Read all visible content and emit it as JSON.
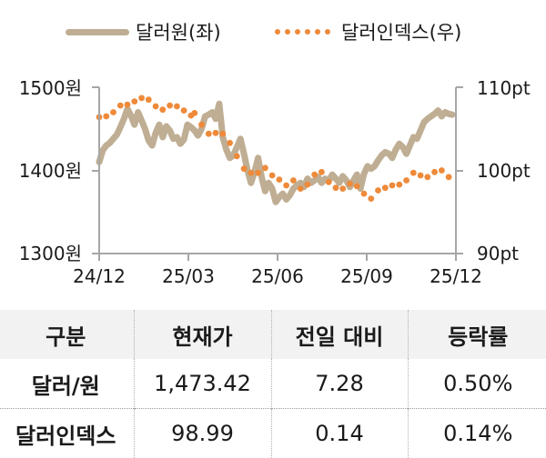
{
  "legend": {
    "usdkrw_label": "달러원(좌)",
    "dxy_label": "달러인덱스(우)"
  },
  "colors": {
    "usdkrw": "#bfae93",
    "dxy": "#ee8a3a",
    "axis": "#a6a6a6",
    "header_bg": "#f2f2f2"
  },
  "chart_data": {
    "type": "line",
    "title": "",
    "xlabel": "",
    "ylabel_left": "원",
    "ylabel_right": "pt",
    "x_tick_labels": [
      "24/12",
      "25/03",
      "25/06",
      "25/09",
      "25/12"
    ],
    "y_left_ticks": [
      "1300원",
      "1400원",
      "1500원"
    ],
    "y_right_ticks": [
      "90pt",
      "100pt",
      "110pt"
    ],
    "ylim_left": [
      1300,
      1500
    ],
    "ylim_right": [
      90,
      110
    ],
    "legend_position": "top",
    "grid": false,
    "x_range": [
      0,
      100
    ],
    "series": [
      {
        "name": "달러원(좌)",
        "axis": "left",
        "style": "solid-thick",
        "x": [
          0,
          1,
          2,
          3,
          4,
          5,
          6,
          7,
          8,
          9,
          10,
          11,
          12,
          13,
          14,
          15,
          16,
          17,
          18,
          19,
          20,
          21,
          22,
          23,
          24,
          25,
          26,
          27,
          28,
          29,
          30,
          31,
          32,
          33,
          34,
          35,
          36,
          37,
          38,
          39,
          40,
          41,
          42,
          43,
          44,
          45,
          46,
          47,
          48,
          49,
          50,
          51,
          52,
          53,
          54,
          55,
          56,
          57,
          58,
          59,
          60,
          61,
          62,
          63,
          64,
          65,
          66,
          67,
          68,
          69,
          70,
          71,
          72,
          73,
          74,
          75,
          76,
          77,
          78,
          79,
          80,
          81,
          82,
          83,
          84,
          85,
          86,
          87,
          88,
          89,
          90,
          91,
          92,
          93,
          94,
          95,
          96,
          97,
          98,
          99,
          100
        ],
        "values": [
          1410,
          1424,
          1430,
          1433,
          1438,
          1443,
          1452,
          1462,
          1474,
          1466,
          1455,
          1470,
          1460,
          1450,
          1436,
          1430,
          1445,
          1455,
          1440,
          1453,
          1448,
          1438,
          1440,
          1432,
          1437,
          1455,
          1452,
          1448,
          1442,
          1450,
          1465,
          1467,
          1470,
          1462,
          1480,
          1440,
          1425,
          1415,
          1418,
          1428,
          1438,
          1420,
          1400,
          1385,
          1398,
          1415,
          1392,
          1375,
          1385,
          1378,
          1362,
          1368,
          1372,
          1365,
          1370,
          1378,
          1382,
          1385,
          1380,
          1390,
          1385,
          1388,
          1392,
          1385,
          1390,
          1387,
          1395,
          1390,
          1385,
          1393,
          1388,
          1380,
          1388,
          1395,
          1378,
          1396,
          1405,
          1402,
          1405,
          1412,
          1418,
          1422,
          1420,
          1415,
          1425,
          1432,
          1428,
          1420,
          1430,
          1440,
          1438,
          1448,
          1458,
          1462,
          1465,
          1468,
          1472,
          1465,
          1470,
          1468,
          1467
        ]
      },
      {
        "name": "달러인덱스(우)",
        "axis": "right",
        "style": "dotted",
        "x": [
          0,
          2,
          4,
          6,
          8,
          10,
          12,
          14,
          16,
          18,
          20,
          22,
          24,
          26,
          27,
          29,
          31,
          33,
          35,
          37,
          39,
          41,
          43,
          45,
          47,
          49,
          51,
          53,
          55,
          57,
          59,
          61,
          63,
          65,
          67,
          69,
          71,
          73,
          75,
          77,
          79,
          81,
          83,
          85,
          87,
          89,
          91,
          93,
          95,
          97,
          99
        ],
        "values": [
          106.4,
          106.5,
          107.0,
          107.8,
          107.9,
          108.3,
          108.7,
          108.5,
          107.7,
          107.3,
          107.8,
          107.7,
          107.2,
          106.6,
          106.9,
          105.5,
          104.4,
          104.5,
          104.4,
          103.3,
          101.7,
          100.2,
          99.7,
          99.7,
          100.3,
          99.4,
          98.9,
          98.2,
          98.8,
          97.8,
          98.3,
          99.5,
          99.8,
          98.6,
          97.9,
          97.8,
          98.4,
          98.1,
          97.2,
          96.6,
          97.6,
          97.9,
          98.2,
          98.3,
          98.8,
          99.7,
          99.4,
          99.2,
          99.8,
          100.0,
          99.2
        ]
      }
    ]
  },
  "axes": {
    "left": {
      "top": "1500원",
      "mid": "1400원",
      "bottom": "1300원"
    },
    "right": {
      "top": "110pt",
      "mid": "100pt",
      "bottom": "90pt"
    },
    "x": [
      "24/12",
      "25/03",
      "25/06",
      "25/09",
      "25/12"
    ]
  },
  "table": {
    "headers": [
      "구분",
      "현재가",
      "전일 대비",
      "등락률"
    ],
    "rows": [
      {
        "name": "달러/원",
        "price": "1,473.42",
        "change": "7.28",
        "rate": "0.50%"
      },
      {
        "name": "달러인덱스",
        "price": "98.99",
        "change": "0.14",
        "rate": "0.14%"
      }
    ]
  }
}
